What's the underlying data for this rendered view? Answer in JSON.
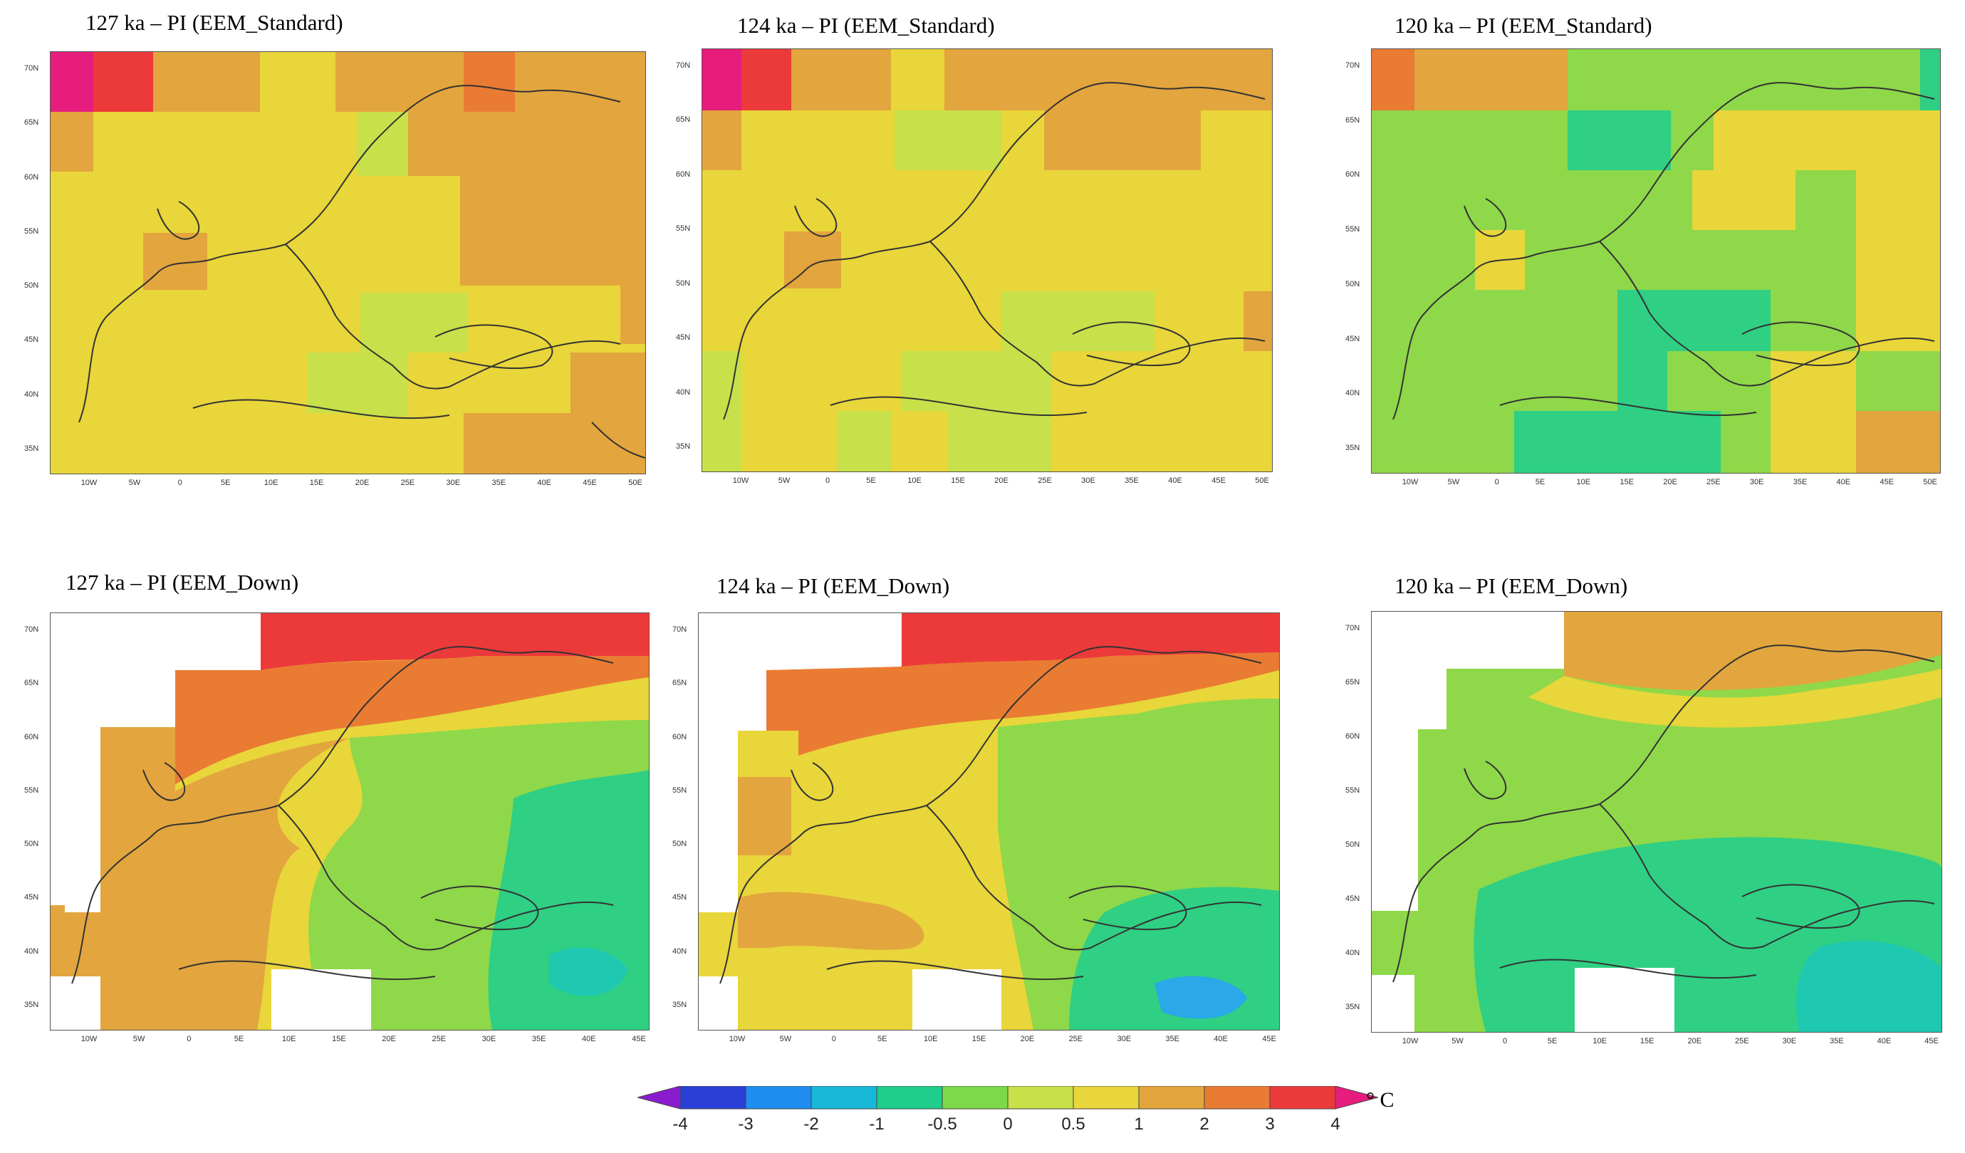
{
  "panels": [
    {
      "id": "p127-std",
      "title": "127 ka – PI (EEM_Standard)"
    },
    {
      "id": "p124-std",
      "title": "124 ka – PI (EEM_Standard)"
    },
    {
      "id": "p120-std",
      "title": "120 ka  – PI (EEM_Standard)"
    },
    {
      "id": "p127-down",
      "title": "127 ka – PI (EEM_Down)"
    },
    {
      "id": "p124-down",
      "title": "124 ka – PI (EEM_Down)"
    },
    {
      "id": "p120-down",
      "title": "120 ka – PI (EEM_Down)"
    }
  ],
  "lat_labels": [
    "70N",
    "65N",
    "60N",
    "55N",
    "50N",
    "45N",
    "40N",
    "35N"
  ],
  "lon_labels_std": [
    "10W",
    "5W",
    "0",
    "5E",
    "10E",
    "15E",
    "20E",
    "25E",
    "30E",
    "35E",
    "40E",
    "45E",
    "50E"
  ],
  "lon_labels_down": [
    "10W",
    "5W",
    "0",
    "5E",
    "10E",
    "15E",
    "20E",
    "25E",
    "30E",
    "35E",
    "40E",
    "45E"
  ],
  "colorbar": {
    "ticks": [
      "-4",
      "-3",
      "-2",
      "-1",
      "-0.5",
      "0",
      "0.5",
      "1",
      "2",
      "3",
      "4"
    ],
    "colors": [
      "#8a1ccf",
      "#2a3fd6",
      "#1f8ef0",
      "#18b8d8",
      "#1fce8a",
      "#7fd84a",
      "#c8e04a",
      "#e8d63a",
      "#e3a53d",
      "#ea7b33",
      "#ec3a3a",
      "#e61d7d"
    ],
    "unit": "° C"
  },
  "palette": {
    "magenta": "#e61d7d",
    "red": "#ec3a3a",
    "orange": "#ea7b33",
    "lightorange": "#e3a53d",
    "yellow": "#e8d63a",
    "yellowgreen": "#c8e04a",
    "green": "#8fd84a",
    "teal": "#2fcf84",
    "cyan": "#1fc8b0",
    "sky": "#2aa8e8"
  }
}
